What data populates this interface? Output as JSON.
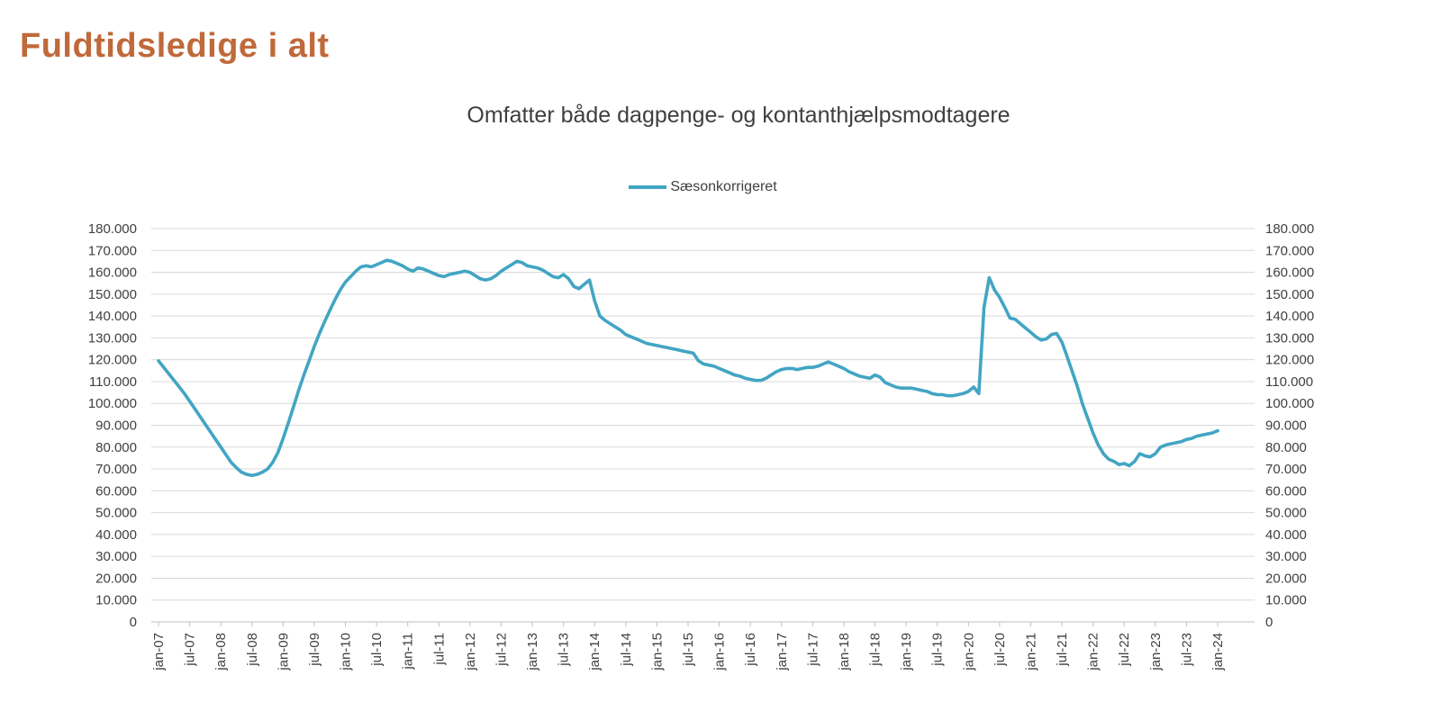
{
  "page": {
    "title": "Fuldtidsledige i alt",
    "title_color": "#c0693a"
  },
  "legend": {
    "label": "Sæsonkorrigeret",
    "swatch_color": "#42a5c3"
  },
  "chart_data": {
    "type": "line",
    "title": "Omfatter både dagpenge- og kontanthjælpsmodtagere",
    "series_name": "Sæsonkorrigeret",
    "line_color": "#42a5c3",
    "gridline_color": "#d9d9d9",
    "axis_color": "#bfbfbf",
    "ylim": [
      0,
      180000
    ],
    "y_tick_step": 10000,
    "y_tick_labels": [
      "0",
      "10.000",
      "20.000",
      "30.000",
      "40.000",
      "50.000",
      "60.000",
      "70.000",
      "80.000",
      "90.000",
      "100.000",
      "110.000",
      "120.000",
      "130.000",
      "140.000",
      "150.000",
      "160.000",
      "170.000",
      "180.000"
    ],
    "x_tick_labels": [
      "jan-07",
      "jul-07",
      "jan-08",
      "jul-08",
      "jan-09",
      "jul-09",
      "jan-10",
      "jul-10",
      "jan-11",
      "jul-11",
      "jan-12",
      "jul-12",
      "jan-13",
      "jul-13",
      "jan-14",
      "jul-14",
      "jan-15",
      "jul-15",
      "jan-16",
      "jul-16",
      "jan-17",
      "jul-17",
      "jan-18",
      "jul-18",
      "jan-19",
      "jul-19",
      "jan-20",
      "jul-20",
      "jan-21",
      "jul-21",
      "jan-22",
      "jul-22",
      "jan-23",
      "jul-23",
      "jan-24"
    ],
    "x_start": "jan-07",
    "x_end": "jan-24",
    "points_per_year": 12,
    "values": [
      119500,
      116500,
      113500,
      110500,
      107500,
      104500,
      101000,
      97500,
      94000,
      90500,
      87000,
      83500,
      80000,
      76500,
      73000,
      70500,
      68500,
      67500,
      67000,
      67500,
      68500,
      70000,
      73000,
      77500,
      84000,
      91000,
      98500,
      106000,
      113000,
      119500,
      126000,
      132000,
      137500,
      142500,
      147500,
      152000,
      155500,
      158000,
      160500,
      162500,
      163000,
      162500,
      163500,
      164500,
      165500,
      165000,
      164000,
      163000,
      161500,
      160500,
      162000,
      161500,
      160500,
      159500,
      158500,
      158000,
      159000,
      159500,
      160000,
      160500,
      160000,
      158500,
      157000,
      156500,
      157000,
      158500,
      160500,
      162000,
      163500,
      165000,
      164500,
      163000,
      162500,
      162000,
      161000,
      159500,
      158000,
      157500,
      159000,
      157000,
      153500,
      152500,
      154500,
      156500,
      147000,
      140000,
      138000,
      136500,
      135000,
      133500,
      131500,
      130500,
      129500,
      128500,
      127500,
      127000,
      126500,
      126000,
      125500,
      125000,
      124500,
      124000,
      123500,
      123000,
      119500,
      118000,
      117500,
      117000,
      116000,
      115000,
      114000,
      113000,
      112500,
      111500,
      111000,
      110500,
      110500,
      111500,
      113000,
      114500,
      115500,
      116000,
      116000,
      115500,
      116000,
      116500,
      116500,
      117000,
      118000,
      119000,
      118000,
      117000,
      116000,
      114500,
      113500,
      112500,
      112000,
      111500,
      113000,
      112000,
      109500,
      108500,
      107500,
      107000,
      107000,
      107000,
      106500,
      106000,
      105500,
      104500,
      104000,
      104000,
      103500,
      103500,
      104000,
      104500,
      105500,
      107500,
      104500,
      144000,
      157500,
      152000,
      148500,
      144000,
      139000,
      138500,
      136500,
      134500,
      132500,
      130500,
      129000,
      129500,
      131500,
      132000,
      128000,
      121500,
      114500,
      107500,
      99500,
      93000,
      86500,
      81000,
      77000,
      74500,
      73500,
      72000,
      72500,
      71500,
      73500,
      77000,
      76000,
      75500,
      77000,
      80000,
      81000,
      81500,
      82000,
      82500,
      83500,
      84000,
      85000,
      85500,
      86000,
      86500,
      87500
    ]
  }
}
